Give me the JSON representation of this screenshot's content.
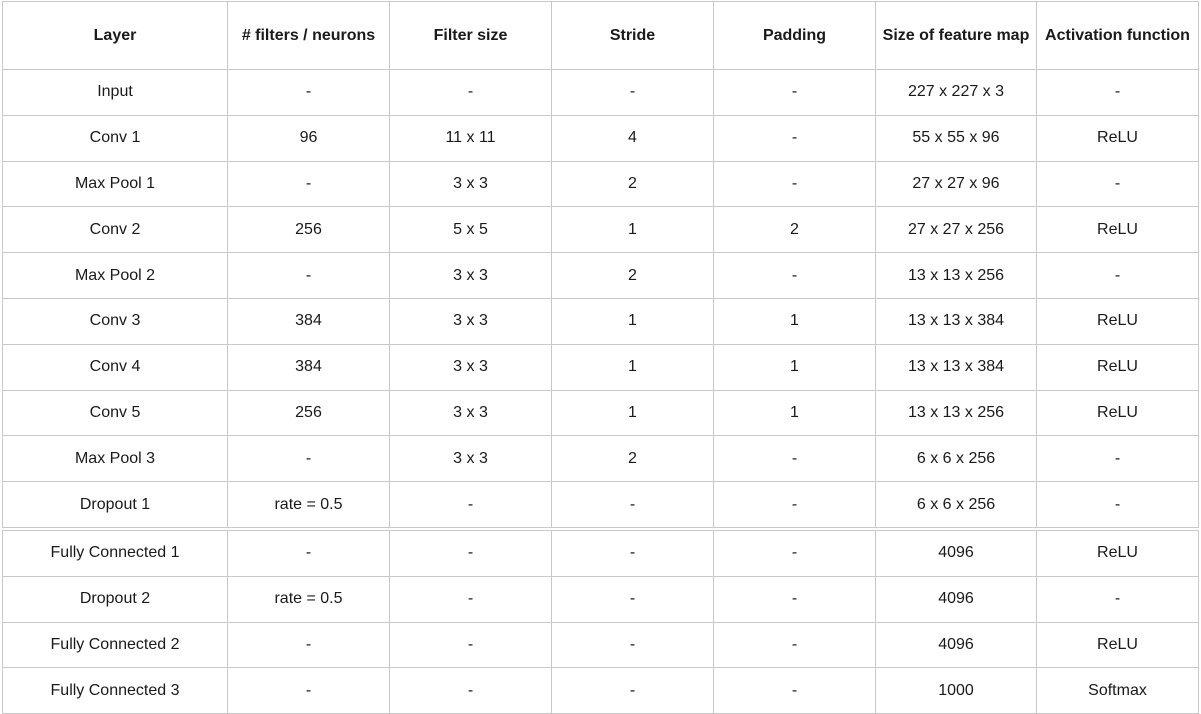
{
  "table": {
    "headers": [
      "Layer",
      "# filters / neurons",
      "Filter size",
      "Stride",
      "Padding",
      "Size of feature map",
      "Activation function"
    ],
    "rows_top": [
      [
        "Input",
        "-",
        "-",
        "-",
        "-",
        "227 x 227 x 3",
        "-"
      ],
      [
        "Conv 1",
        "96",
        "11 x 11",
        "4",
        "-",
        "55 x 55 x 96",
        "ReLU"
      ],
      [
        "Max Pool 1",
        "-",
        "3 x 3",
        "2",
        "-",
        "27 x 27 x 96",
        "-"
      ],
      [
        "Conv 2",
        "256",
        "5 x 5",
        "1",
        "2",
        "27 x 27 x 256",
        "ReLU"
      ],
      [
        "Max Pool 2",
        "-",
        "3 x 3",
        "2",
        "-",
        "13 x 13 x 256",
        "-"
      ],
      [
        "Conv 3",
        "384",
        "3 x 3",
        "1",
        "1",
        "13 x 13 x 384",
        "ReLU"
      ],
      [
        "Conv 4",
        "384",
        "3 x 3",
        "1",
        "1",
        "13 x 13 x 384",
        "ReLU"
      ],
      [
        "Conv 5",
        "256",
        "3 x 3",
        "1",
        "1",
        "13 x 13 x 256",
        "ReLU"
      ],
      [
        "Max Pool 3",
        "-",
        "3 x 3",
        "2",
        "-",
        "6 x 6 x 256",
        "-"
      ],
      [
        "Dropout 1",
        "rate = 0.5",
        "-",
        "-",
        "-",
        "6 x 6 x 256",
        "-"
      ]
    ],
    "rows_bottom": [
      [
        "Fully Connected 1",
        "-",
        "-",
        "-",
        "-",
        "4096",
        "ReLU"
      ],
      [
        "Dropout 2",
        "rate = 0.5",
        "-",
        "-",
        "-",
        "4096",
        "-"
      ],
      [
        "Fully Connected 2",
        "-",
        "-",
        "-",
        "-",
        "4096",
        "ReLU"
      ],
      [
        "Fully Connected 3",
        "-",
        "-",
        "-",
        "-",
        "1000",
        "Softmax"
      ]
    ]
  }
}
